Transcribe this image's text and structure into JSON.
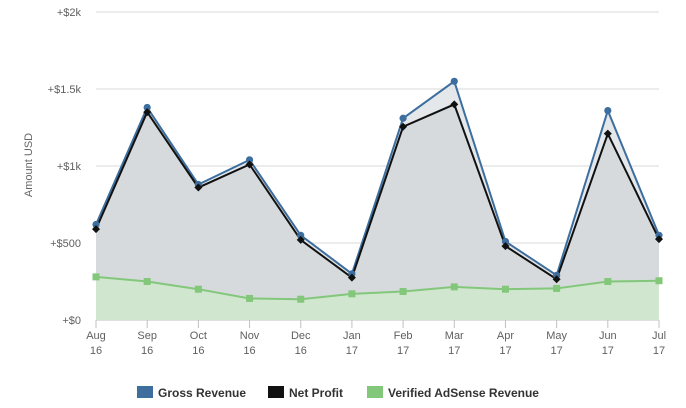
{
  "chart_data": {
    "type": "area",
    "title": "",
    "ylabel": "Amount USD",
    "xlabel": "",
    "ylim": [
      0,
      2000
    ],
    "y_ticks": [
      0,
      500,
      1000,
      1500,
      2000
    ],
    "y_tick_labels": [
      "+$0",
      "+$500",
      "+$1k",
      "+$1.5k",
      "+$2k"
    ],
    "categories": [
      [
        "Aug",
        "16"
      ],
      [
        "Sep",
        "16"
      ],
      [
        "Oct",
        "16"
      ],
      [
        "Nov",
        "16"
      ],
      [
        "Dec",
        "16"
      ],
      [
        "Jan",
        "17"
      ],
      [
        "Feb",
        "17"
      ],
      [
        "Mar",
        "17"
      ],
      [
        "Apr",
        "17"
      ],
      [
        "May",
        "17"
      ],
      [
        "Jun",
        "17"
      ],
      [
        "Jul",
        "17"
      ]
    ],
    "grid": true,
    "legend_position": "bottom",
    "series": [
      {
        "name": "Gross Revenue",
        "color": "#3d6e9e",
        "marker": "circle",
        "values": [
          620,
          1380,
          880,
          1040,
          550,
          300,
          1310,
          1550,
          510,
          290,
          1360,
          550
        ]
      },
      {
        "name": "Net Profit",
        "color": "#111111",
        "marker": "diamond",
        "values": [
          590,
          1350,
          860,
          1010,
          520,
          275,
          1255,
          1400,
          480,
          265,
          1210,
          525
        ]
      },
      {
        "name": "Verified AdSense Revenue",
        "color": "#82c77a",
        "marker": "square",
        "values": [
          280,
          250,
          200,
          140,
          135,
          170,
          185,
          215,
          200,
          205,
          250,
          255
        ]
      }
    ]
  }
}
